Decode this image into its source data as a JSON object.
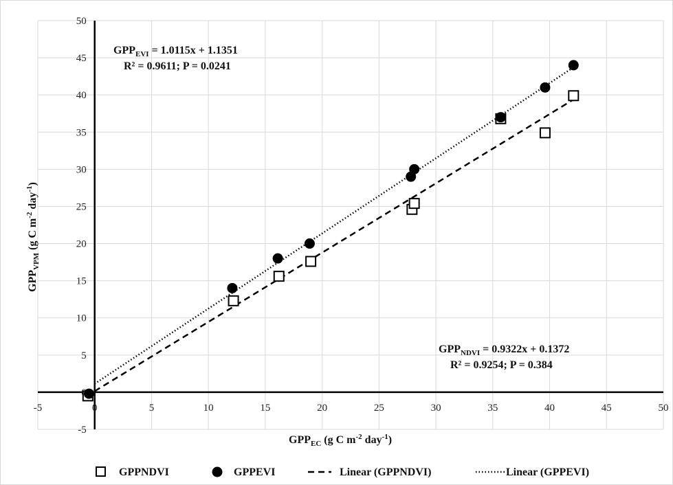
{
  "chart_data": {
    "type": "scatter",
    "xlim": [
      -5,
      50
    ],
    "ylim": [
      -5,
      50
    ],
    "x_ticks": [
      -5,
      0,
      5,
      10,
      15,
      20,
      25,
      30,
      35,
      40,
      45,
      50
    ],
    "y_ticks": [
      -5,
      0,
      5,
      10,
      15,
      20,
      25,
      30,
      35,
      40,
      45,
      50
    ],
    "grid": true,
    "xlabel": {
      "base": "GPP",
      "sub": "EC",
      "rest": " (g C m",
      "sup": "-2",
      "rest2": " day",
      "sup2": "-1",
      "end": ")"
    },
    "ylabel": {
      "base": "GPP",
      "sub": "VPM",
      "rest": " (g C m",
      "sup": "-2",
      "rest2": " day",
      "sup2": "-1",
      "end": ")"
    },
    "legend_position": "bottom",
    "series": [
      {
        "name": "GPPNDVI",
        "marker": "open-square",
        "points": [
          [
            -0.6,
            -0.5
          ],
          [
            12.2,
            12.3
          ],
          [
            16.2,
            15.6
          ],
          [
            19.0,
            17.6
          ],
          [
            27.9,
            24.6
          ],
          [
            28.1,
            25.4
          ],
          [
            35.7,
            36.8
          ],
          [
            39.6,
            34.9
          ],
          [
            42.1,
            39.9
          ]
        ]
      },
      {
        "name": "GPPEVI",
        "marker": "filled-circle",
        "points": [
          [
            -0.5,
            -0.2
          ],
          [
            12.1,
            14.0
          ],
          [
            16.1,
            18.0
          ],
          [
            18.9,
            20.0
          ],
          [
            27.8,
            29.0
          ],
          [
            28.1,
            30.0
          ],
          [
            35.7,
            37.0
          ],
          [
            39.6,
            41.0
          ],
          [
            42.1,
            44.0
          ]
        ]
      }
    ],
    "trendlines": [
      {
        "name": "Linear (GPPNDVI)",
        "style": "dashed",
        "slope": 0.9322,
        "intercept": 0.1372,
        "x_range": [
          0,
          42.1
        ]
      },
      {
        "name": "Linear (GPPEVI)",
        "style": "dotted",
        "slope": 1.0115,
        "intercept": 1.1351,
        "x_range": [
          0,
          42.1
        ]
      }
    ],
    "annotations": {
      "evi_eq": {
        "base": "GPP",
        "sub": "EVI",
        "rest": " = 1.0115x + 1.1351"
      },
      "evi_stats": "R² = 0.9611; P = 0.0241",
      "ndvi_eq": {
        "base": "GPP",
        "sub": "NDVI",
        "rest": " = 0.9322x + 0.1372"
      },
      "ndvi_stats": "R² = 0.9254; P = 0.384"
    }
  },
  "colors": {
    "marker": "#000000",
    "grid": "#d9d9d9",
    "axis": "#000000",
    "border": "#d9d9d9"
  }
}
